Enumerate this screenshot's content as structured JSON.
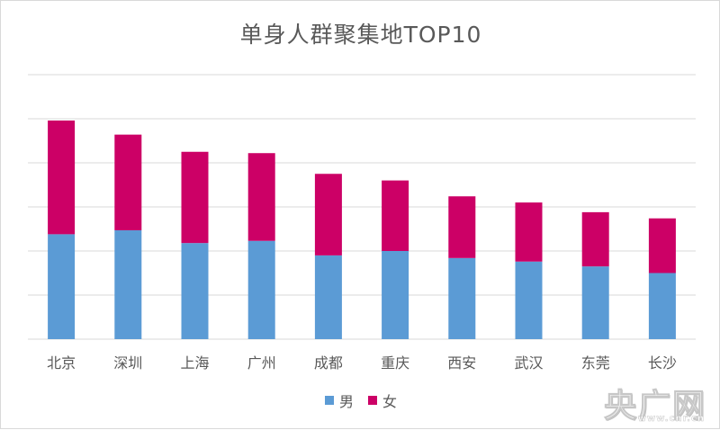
{
  "chart_data": {
    "type": "bar",
    "stacked": true,
    "title": "单身人群聚集地TOP10",
    "categories": [
      "北京",
      "深圳",
      "上海",
      "广州",
      "成都",
      "重庆",
      "西安",
      "武汉",
      "东莞",
      "长沙"
    ],
    "series": [
      {
        "name": "男",
        "color": "#5b9bd5",
        "values": [
          2.38,
          2.47,
          2.18,
          2.23,
          1.9,
          2.0,
          1.84,
          1.76,
          1.65,
          1.5
        ]
      },
      {
        "name": "女",
        "color": "#cc0066",
        "values": [
          2.58,
          2.17,
          2.07,
          1.99,
          1.85,
          1.6,
          1.4,
          1.34,
          1.23,
          1.24
        ]
      }
    ],
    "ylim": [
      0,
      5.0
    ],
    "y_gridlines": [
      0,
      1,
      2,
      3,
      4,
      5,
      6
    ],
    "y_tick_labels_shown": false,
    "grid": true,
    "legend_position": "bottom",
    "xlabel": "",
    "ylabel": ""
  },
  "watermark": {
    "main": "央广网",
    "sub": "www.cnr.cn"
  }
}
